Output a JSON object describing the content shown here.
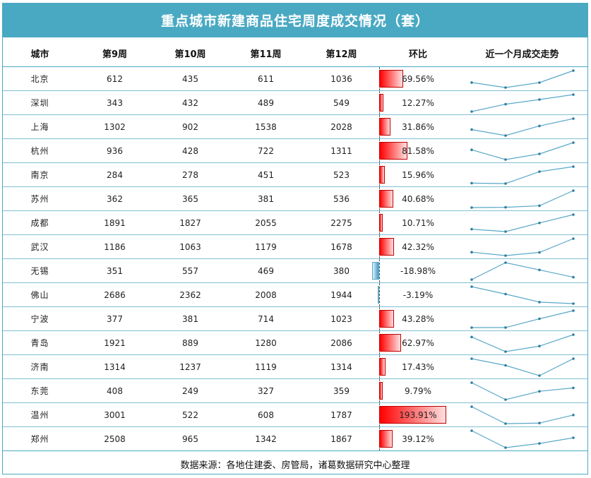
{
  "title": "重点城市新建商品住宅周度成交情况（套）",
  "footer": "数据来源：各地住建委、房管局，诸葛数据研究中心整理",
  "colors": {
    "header_bg": "#4aa9c2",
    "line": "#5aa8c8",
    "pos_bar": "#ff0000",
    "neg_bar": "#3c9ccc"
  },
  "chart_data": {
    "type": "table",
    "columns": [
      "城市",
      "第9周",
      "第10周",
      "第11周",
      "第12周",
      "环比",
      "近一个月成交走势"
    ],
    "rows": [
      {
        "city": "北京",
        "values": [
          612,
          435,
          611,
          1036
        ],
        "hb": 69.56,
        "hb_text": "69.56%"
      },
      {
        "city": "深圳",
        "values": [
          343,
          432,
          489,
          549
        ],
        "hb": 12.27,
        "hb_text": "12.27%"
      },
      {
        "city": "上海",
        "values": [
          1302,
          902,
          1538,
          2028
        ],
        "hb": 31.86,
        "hb_text": "31.86%"
      },
      {
        "city": "杭州",
        "values": [
          936,
          428,
          722,
          1311
        ],
        "hb": 81.58,
        "hb_text": "81.58%"
      },
      {
        "city": "南京",
        "values": [
          284,
          278,
          451,
          523
        ],
        "hb": 15.96,
        "hb_text": "15.96%"
      },
      {
        "city": "苏州",
        "values": [
          362,
          365,
          381,
          536
        ],
        "hb": 40.68,
        "hb_text": "40.68%"
      },
      {
        "city": "成都",
        "values": [
          1891,
          1827,
          2055,
          2275
        ],
        "hb": 10.71,
        "hb_text": "10.71%"
      },
      {
        "city": "武汉",
        "values": [
          1186,
          1063,
          1179,
          1678
        ],
        "hb": 42.32,
        "hb_text": "42.32%"
      },
      {
        "city": "无锡",
        "values": [
          351,
          557,
          469,
          380
        ],
        "hb": -18.98,
        "hb_text": "-18.98%"
      },
      {
        "city": "佛山",
        "values": [
          2686,
          2362,
          2008,
          1944
        ],
        "hb": -3.19,
        "hb_text": "-3.19%"
      },
      {
        "city": "宁波",
        "values": [
          377,
          381,
          714,
          1023
        ],
        "hb": 43.28,
        "hb_text": "43.28%"
      },
      {
        "city": "青岛",
        "values": [
          1921,
          889,
          1280,
          2086
        ],
        "hb": 62.97,
        "hb_text": "62.97%"
      },
      {
        "city": "济南",
        "values": [
          1314,
          1237,
          1119,
          1314
        ],
        "hb": 17.43,
        "hb_text": "17.43%"
      },
      {
        "city": "东莞",
        "values": [
          408,
          249,
          327,
          359
        ],
        "hb": 9.79,
        "hb_text": "9.79%"
      },
      {
        "city": "温州",
        "values": [
          3001,
          522,
          608,
          1787
        ],
        "hb": 193.91,
        "hb_text": "193.91%"
      },
      {
        "city": "郑州",
        "values": [
          2508,
          965,
          1342,
          1867
        ],
        "hb": 39.12,
        "hb_text": "39.12%"
      }
    ]
  }
}
